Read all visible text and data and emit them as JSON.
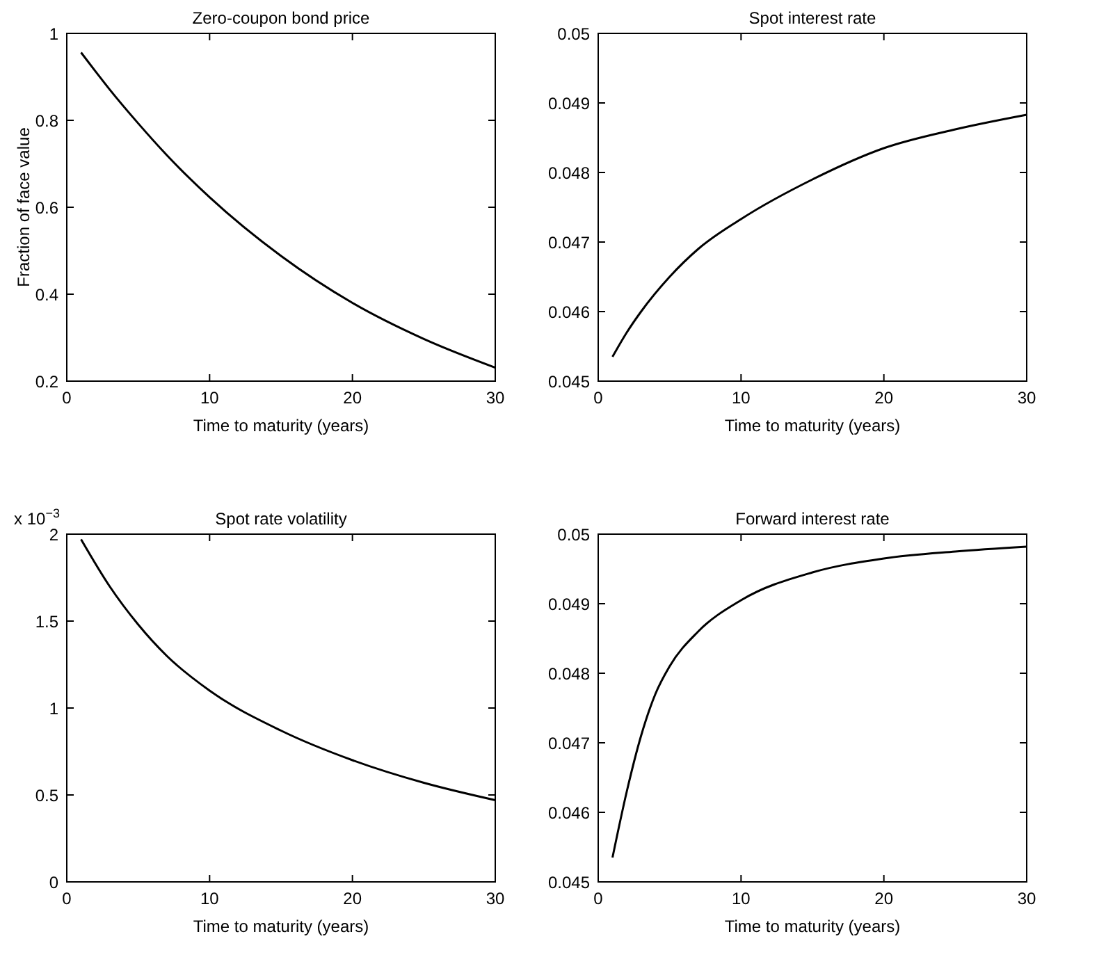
{
  "chart_data": [
    {
      "type": "line",
      "title": "Zero-coupon bond price",
      "xlabel": "Time to maturity (years)",
      "ylabel": "Fraction of face value",
      "x": [
        1,
        2,
        3,
        5,
        7,
        10,
        15,
        20,
        25,
        30
      ],
      "series": [
        {
          "color": "#000000",
          "values": [
            0.956,
            0.913,
            0.871,
            0.793,
            0.72,
            0.623,
            0.488,
            0.38,
            0.297,
            0.231
          ]
        }
      ],
      "xlim": [
        0,
        30
      ],
      "ylim": [
        0.2,
        1
      ],
      "xticks": [
        0,
        10,
        20,
        30
      ],
      "yticks": [
        0.2,
        0.4,
        0.6,
        0.8,
        1
      ],
      "grid": false
    },
    {
      "type": "line",
      "title": "Spot interest rate",
      "xlabel": "Time to maturity (years)",
      "x": [
        1,
        2,
        3,
        5,
        7,
        10,
        15,
        20,
        25,
        30
      ],
      "series": [
        {
          "color": "#000000",
          "values": [
            0.04535,
            0.0457,
            0.046,
            0.0465,
            0.0469,
            0.04733,
            0.0479,
            0.04835,
            0.04862,
            0.04883
          ]
        }
      ],
      "xlim": [
        0,
        30
      ],
      "ylim": [
        0.045,
        0.05
      ],
      "xticks": [
        0,
        10,
        20,
        30
      ],
      "yticks": [
        0.045,
        0.046,
        0.047,
        0.048,
        0.049,
        0.05
      ],
      "grid": false
    },
    {
      "type": "line",
      "title": "Spot rate volatility",
      "xlabel": "Time to maturity (years)",
      "annotations": [
        "x 10$^{−3}$"
      ],
      "x": [
        1,
        3,
        5,
        7,
        10,
        15,
        20,
        25,
        30
      ],
      "series": [
        {
          "color": "#000000",
          "values": [
            1.97,
            1.7,
            1.48,
            1.3,
            1.1,
            0.87,
            0.7,
            0.57,
            0.47
          ]
        }
      ],
      "xlim": [
        0,
        30
      ],
      "ylim": [
        0,
        2
      ],
      "xticks": [
        0,
        10,
        20,
        30
      ],
      "yticks": [
        0,
        0.5,
        1,
        1.5,
        2
      ],
      "grid": false
    },
    {
      "type": "line",
      "title": "Forward interest rate",
      "xlabel": "Time to maturity (years)",
      "x": [
        1,
        2,
        3,
        4,
        5,
        7,
        10,
        15,
        20,
        25,
        30
      ],
      "series": [
        {
          "color": "#000000",
          "values": [
            0.04535,
            0.0463,
            0.0471,
            0.0477,
            0.0481,
            0.0486,
            0.04905,
            0.04945,
            0.04965,
            0.04975,
            0.04982
          ]
        }
      ],
      "xlim": [
        0,
        30
      ],
      "ylim": [
        0.045,
        0.05
      ],
      "xticks": [
        0,
        10,
        20,
        30
      ],
      "yticks": [
        0.045,
        0.046,
        0.047,
        0.048,
        0.049,
        0.05
      ],
      "grid": false
    }
  ]
}
